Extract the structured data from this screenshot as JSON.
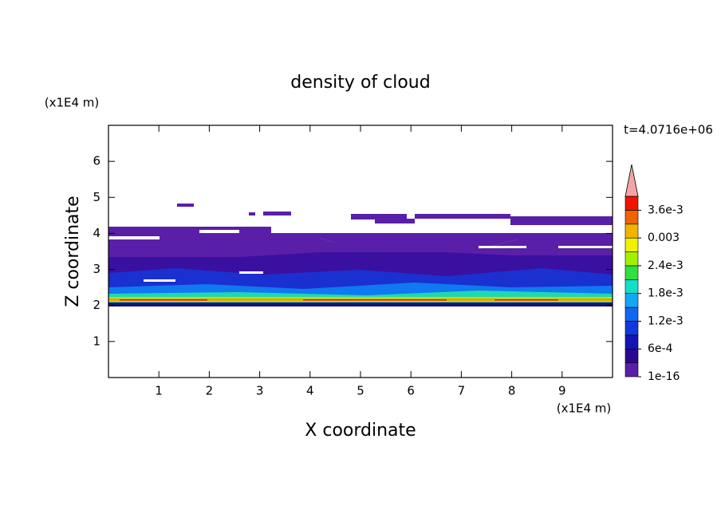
{
  "chart_data": {
    "type": "contour",
    "title": "density of cloud",
    "x_label": "X coordinate",
    "y_label": "Z coordinate",
    "x_unit": "(x1E4 m)",
    "y_unit": "(x1E4 m)",
    "time_label": "t=4.0716e+06",
    "xlim": [
      0,
      10
    ],
    "ylim": [
      0,
      7
    ],
    "xticks": [
      1,
      2,
      3,
      4,
      5,
      6,
      7,
      8,
      9
    ],
    "yticks": [
      1,
      2,
      3,
      4,
      5,
      6
    ],
    "colorbar": {
      "lim": [
        0,
        0.0039
      ],
      "extend_color": "#f4a4a4",
      "colors": [
        "#5a1fa8",
        "#2a0890",
        "#1414b4",
        "#1038dc",
        "#1066f0",
        "#10a8f0",
        "#10e0c8",
        "#30e040",
        "#a0f000",
        "#f0f000",
        "#f0b400",
        "#f06400",
        "#f01400"
      ],
      "ticks": [
        {
          "value": 1e-16,
          "label": "1e-16"
        },
        {
          "value": 0.0006,
          "label": "6e-4"
        },
        {
          "value": 0.0012,
          "label": "1.2e-3"
        },
        {
          "value": 0.0018,
          "label": "1.8e-3"
        },
        {
          "value": 0.0024,
          "label": "2.4e-3"
        },
        {
          "value": 0.003,
          "label": "0.003"
        },
        {
          "value": 0.0036,
          "label": "3.6e-3"
        }
      ]
    }
  }
}
